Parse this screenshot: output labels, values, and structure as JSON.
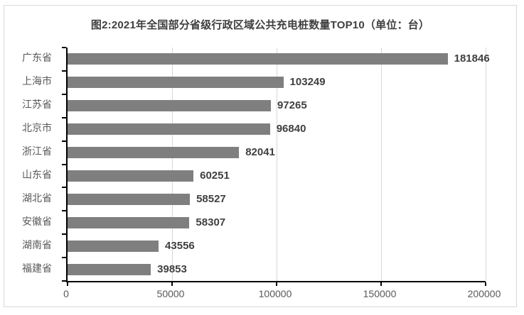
{
  "title": "图2:2021年全国部分省级行政区域公共充电桩数量TOP10（单位：台）",
  "chart_data": {
    "type": "bar",
    "orientation": "horizontal",
    "title": "图2:2021年全国部分省级行政区域公共充电桩数量TOP10（单位：台）",
    "categories": [
      "广东省",
      "上海市",
      "江苏省",
      "北京市",
      "浙江省",
      "山东省",
      "湖北省",
      "安徽省",
      "湖南省",
      "福建省"
    ],
    "values": [
      181846,
      103249,
      97265,
      96840,
      82041,
      60251,
      58527,
      58307,
      43556,
      39853
    ],
    "value_labels": [
      "181846",
      "103249",
      "97265",
      "96840",
      "82041",
      "60251",
      "58527",
      "58307",
      "43556",
      "39853"
    ],
    "xlabel": "",
    "ylabel": "",
    "xlim": [
      0,
      200000
    ],
    "x_ticks": [
      0,
      50000,
      100000,
      150000,
      200000
    ],
    "x_tick_labels": [
      "0",
      "50000",
      "100000",
      "150000",
      "200000"
    ],
    "grid": true,
    "legend": false,
    "bar_data_labels_shown": true,
    "colors": {
      "bar": "#7f7f7f",
      "gridline": "#d9d9d9",
      "axis": "#000000",
      "category_label": "#595959",
      "value_label": "#404040",
      "title": "#404040",
      "frame_border": "#d9d9d9"
    }
  }
}
